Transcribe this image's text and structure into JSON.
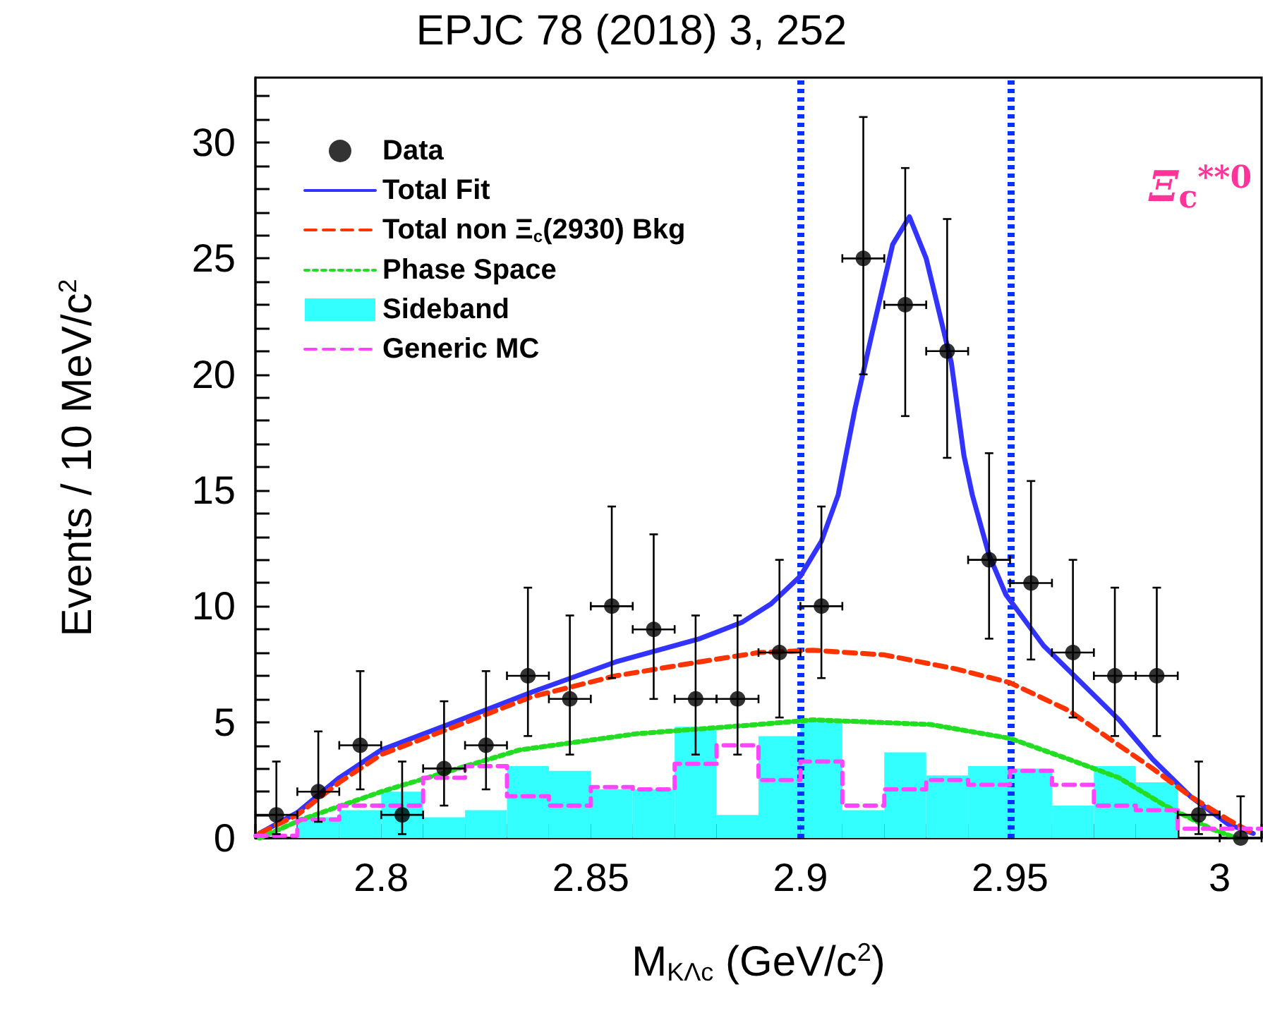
{
  "chart_data": {
    "type": "scatter",
    "title": "EPJC 78 (2018) 3, 252",
    "xlabel": "M$_{KΛc}$ (GeV/c$^{2}$)",
    "ylabel": "Events / 10 MeV/c$^{2}$",
    "annotations": [
      "Ξ$_{c}$$^{**0}$"
    ],
    "xlim": [
      2.77,
      3.01
    ],
    "xticks": [
      {
        "value": 2.77,
        "label": null
      },
      {
        "value": 2.78,
        "label": null
      },
      {
        "value": 2.79,
        "label": null
      },
      2.8,
      {
        "value": 2.81,
        "label": null
      },
      {
        "value": 2.82,
        "label": null
      },
      {
        "value": 2.83,
        "label": null
      },
      {
        "value": 2.84,
        "label": null
      },
      2.85,
      {
        "value": 2.86,
        "label": null
      },
      {
        "value": 2.87,
        "label": null
      },
      {
        "value": 2.88,
        "label": null
      },
      {
        "value": 2.89,
        "label": null
      },
      2.9,
      {
        "value": 2.91,
        "label": null
      },
      {
        "value": 2.92,
        "label": null
      },
      {
        "value": 2.93,
        "label": null
      },
      {
        "value": 2.94,
        "label": null
      },
      2.95,
      {
        "value": 2.96,
        "label": null
      },
      {
        "value": 2.97,
        "label": null
      },
      {
        "value": 2.98,
        "label": null
      },
      {
        "value": 2.99,
        "label": null
      },
      3,
      {
        "value": 3.01,
        "label": null
      }
    ],
    "ylim": [
      0,
      32.8
    ],
    "yticks": [
      0,
      {
        "value": 1,
        "label": null
      },
      {
        "value": 2,
        "label": null
      },
      {
        "value": 3,
        "label": null
      },
      {
        "value": 4,
        "label": null
      },
      5,
      {
        "value": 6,
        "label": null
      },
      {
        "value": 7,
        "label": null
      },
      {
        "value": 8,
        "label": null
      },
      {
        "value": 9,
        "label": null
      },
      10,
      {
        "value": 11,
        "label": null
      },
      {
        "value": 12,
        "label": null
      },
      {
        "value": 13,
        "label": null
      },
      {
        "value": 14,
        "label": null
      },
      15,
      {
        "value": 16,
        "label": null
      },
      {
        "value": 17,
        "label": null
      },
      {
        "value": 18,
        "label": null
      },
      {
        "value": 19,
        "label": null
      },
      20,
      {
        "value": 21,
        "label": null
      },
      {
        "value": 22,
        "label": null
      },
      {
        "value": 23,
        "label": null
      },
      {
        "value": 24,
        "label": null
      },
      25,
      {
        "value": 26,
        "label": null
      },
      {
        "value": 27,
        "label": null
      },
      {
        "value": 28,
        "label": null
      },
      {
        "value": 29,
        "label": null
      },
      30,
      {
        "value": 31,
        "label": null
      },
      {
        "value": 32,
        "label": null
      }
    ],
    "legend": "top left",
    "marker": "none",
    "series": [
      {
        "name": "Data",
        "marker": "circle",
        "color": "#000000",
        "x": [
          2.775,
          2.785,
          2.795,
          2.805,
          2.815,
          2.825,
          2.835,
          2.845,
          2.855,
          2.865,
          2.875,
          2.885,
          2.895,
          2.905,
          2.915,
          2.925,
          2.935,
          2.945,
          2.955,
          2.965,
          2.975,
          2.985,
          2.995,
          3.005
        ],
        "values": [
          1,
          2,
          4,
          1,
          3,
          4,
          7,
          6,
          10,
          9,
          6,
          6,
          8,
          10,
          25,
          23,
          21,
          12,
          11,
          8,
          7,
          7,
          1,
          0
        ],
        "errors": [
          [
            0.17,
            3.3
          ],
          [
            0.7,
            4.6
          ],
          [
            2.1,
            7.2
          ],
          [
            0.17,
            3.3
          ],
          [
            1.4,
            5.9
          ],
          [
            2.1,
            7.2
          ],
          [
            4.4,
            10.8
          ],
          [
            3.6,
            9.6
          ],
          [
            6.9,
            14.3
          ],
          [
            6,
            13.1
          ],
          [
            3.6,
            9.6
          ],
          [
            3.6,
            9.6
          ],
          [
            5.2,
            12
          ],
          [
            6.9,
            14.3
          ],
          [
            20,
            31.1
          ],
          [
            18.2,
            28.9
          ],
          [
            16.4,
            26.7
          ],
          [
            8.6,
            16.6
          ],
          [
            7.7,
            15.4
          ],
          [
            5.2,
            12
          ],
          [
            4.4,
            10.8
          ],
          [
            4.4,
            10.8
          ],
          [
            0.17,
            3.3
          ],
          [
            0,
            1.8
          ]
        ],
        "xerrors": [
          0.005,
          0.005,
          0.005,
          0.005,
          0.005,
          0.005,
          0.005,
          0.005,
          0.005,
          0.005,
          0.005,
          0.005,
          0.005,
          0.005,
          0.005,
          0.005,
          0.005,
          0.005,
          0.005,
          0.005,
          0.005,
          0.005,
          0.005,
          0.005
        ]
      },
      {
        "name": "Total Fit",
        "type": "line",
        "line_style": "solid",
        "color": "#3333ff",
        "x": [
          2.771,
          2.78,
          2.786,
          2.79,
          2.8,
          2.816,
          2.836,
          2.856,
          2.876,
          2.886,
          2.893,
          2.9,
          2.905,
          2.909,
          2.913,
          2.917,
          2.922,
          2.926,
          2.93,
          2.936,
          2.939,
          2.941,
          2.945,
          2.949,
          2.958,
          2.967,
          2.976,
          2.984,
          2.993,
          3.002,
          3.008
        ],
        "values": [
          0.2,
          1.1,
          2,
          2.6,
          3.8,
          4.9,
          6.3,
          7.6,
          8.6,
          9.3,
          10.1,
          11.3,
          12.8,
          14.8,
          18.5,
          21.7,
          25.6,
          26.8,
          25,
          20.5,
          16.5,
          14.8,
          12.2,
          10.5,
          8.3,
          6.7,
          5.1,
          3.4,
          1.8,
          0.6,
          0.2
        ]
      },
      {
        "name": "Total non Ξ$_{c}$(2930) Bkg",
        "type": "line",
        "line_style": "dashed",
        "color": "#ff3300",
        "x": [
          2.771,
          2.78,
          2.79,
          2.8,
          2.816,
          2.836,
          2.856,
          2.876,
          2.89,
          2.903,
          2.92,
          2.937,
          2.95,
          2.964,
          2.976,
          2.984,
          2.993,
          3.002,
          3.008
        ],
        "values": [
          0.2,
          1,
          2.4,
          3.6,
          4.7,
          6.1,
          7,
          7.6,
          8,
          8.1,
          7.9,
          7.3,
          6.7,
          5.5,
          4,
          3,
          1.8,
          0.8,
          0.2
        ]
      },
      {
        "name": "Phase Space",
        "type": "line",
        "line_style": "dotted",
        "color": "#22dd22",
        "x": [
          2.771,
          2.781,
          2.8,
          2.833,
          2.861,
          2.89,
          2.903,
          2.931,
          2.95,
          2.964,
          2.976,
          2.987,
          2.998,
          3.004
        ],
        "values": [
          0,
          0.8,
          2,
          3.8,
          4.5,
          4.9,
          5.1,
          4.9,
          4.3,
          3.4,
          2.6,
          1.4,
          0.4,
          0
        ]
      },
      {
        "name": "Sideband",
        "type": "histogram",
        "color": "#33ffff",
        "bins": [
          2.77,
          2.78,
          2.79,
          2.8,
          2.81,
          2.82,
          2.83,
          2.84,
          2.85,
          2.86,
          2.87,
          2.88,
          2.89,
          2.9,
          2.91,
          2.92,
          2.93,
          2.94,
          2.95,
          2.96,
          2.97,
          2.98,
          2.99
        ],
        "values": [
          null,
          0.9,
          1.2,
          2,
          0.9,
          1.2,
          3.1,
          2.9,
          2.1,
          2.1,
          4.8,
          1,
          4.4,
          5.1,
          1.2,
          3.7,
          2.7,
          3.1,
          3,
          1.4,
          3.1,
          2.4
        ]
      },
      {
        "name": "Generic MC",
        "type": "step",
        "line_style": "dashed",
        "color": "#ff44ff",
        "x": [
          2.77,
          2.78,
          2.79,
          2.8,
          2.81,
          2.82,
          2.83,
          2.84,
          2.85,
          2.86,
          2.87,
          2.88,
          2.89,
          2.9,
          2.91,
          2.92,
          2.93,
          2.94,
          2.95,
          2.96,
          2.97,
          2.98,
          2.99,
          3,
          3.01
        ],
        "values": [
          0.1,
          0.8,
          1.4,
          1.4,
          2.6,
          3.1,
          1.8,
          1.4,
          2.2,
          2.1,
          3.2,
          4,
          2.5,
          3.3,
          1.4,
          2.1,
          2.5,
          2.3,
          2.9,
          2.3,
          1.4,
          1.2,
          0.4,
          0.4,
          0.4
        ]
      }
    ],
    "ref_lines": [
      {
        "axis": "x",
        "value": 2.9,
        "color": "#0033ff",
        "line_style": "dotted"
      },
      {
        "axis": "x",
        "value": 2.95,
        "color": "#0033ff",
        "line_style": "dotted"
      }
    ]
  }
}
